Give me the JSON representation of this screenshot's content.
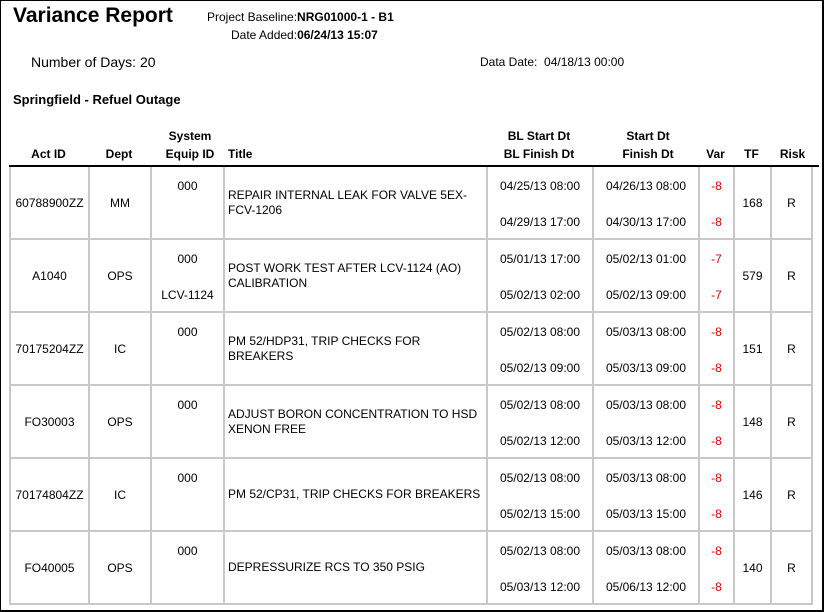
{
  "header": {
    "title": "Variance Report",
    "baseline_label": "Project Baseline:",
    "baseline_value": "NRG01000-1 - B1",
    "date_added_label": "Date Added:",
    "date_added_value": "06/24/13 15:07",
    "days_label": "Number of Days:",
    "days_value": "20",
    "data_date_label": "Data Date:",
    "data_date_value": "04/18/13 00:00",
    "section": "Springfield - Refuel Outage"
  },
  "columns": {
    "act_id": "Act ID",
    "dept": "Dept",
    "sys1": "System",
    "sys2": "Equip ID",
    "title": "Title",
    "bl1": "BL Start Dt",
    "bl2": "BL Finish Dt",
    "st1": "Start Dt",
    "st2": "Finish Dt",
    "var": "Var",
    "tf": "TF",
    "risk": "Risk"
  },
  "rows": [
    {
      "act_id": "60788900ZZ",
      "dept": "MM",
      "sys": "000",
      "equip": "",
      "title": "REPAIR INTERNAL LEAK FOR VALVE 5EX-FCV-1206",
      "bl_start": "04/25/13 08:00",
      "bl_finish": "04/29/13 17:00",
      "start": "04/26/13 08:00",
      "finish": "04/30/13 17:00",
      "var_start": "-8",
      "var_finish": "-8",
      "tf": "168",
      "risk": "R"
    },
    {
      "act_id": "A1040",
      "dept": "OPS",
      "sys": "000",
      "equip": "LCV-1124",
      "title": "POST WORK TEST AFTER LCV-1124 (AO) CALIBRATION",
      "bl_start": "05/01/13 17:00",
      "bl_finish": "05/02/13 02:00",
      "start": "05/02/13 01:00",
      "finish": "05/02/13 09:00",
      "var_start": "-7",
      "var_finish": "-7",
      "tf": "579",
      "risk": "R"
    },
    {
      "act_id": "70175204ZZ",
      "dept": "IC",
      "sys": "000",
      "equip": "",
      "title": "PM 52/HDP31, TRIP CHECKS FOR BREAKERS",
      "bl_start": "05/02/13 08:00",
      "bl_finish": "05/02/13 09:00",
      "start": "05/03/13 08:00",
      "finish": "05/03/13 09:00",
      "var_start": "-8",
      "var_finish": "-8",
      "tf": "151",
      "risk": "R"
    },
    {
      "act_id": "FO30003",
      "dept": "OPS",
      "sys": "000",
      "equip": "",
      "title": "ADJUST BORON CONCENTRATION TO HSD XENON FREE",
      "bl_start": "05/02/13 08:00",
      "bl_finish": "05/02/13 12:00",
      "start": "05/03/13 08:00",
      "finish": "05/03/13 12:00",
      "var_start": "-8",
      "var_finish": "-8",
      "tf": "148",
      "risk": "R"
    },
    {
      "act_id": "70174804ZZ",
      "dept": "IC",
      "sys": "000",
      "equip": "",
      "title": "PM 52/CP31, TRIP CHECKS FOR BREAKERS",
      "bl_start": "05/02/13 08:00",
      "bl_finish": "05/02/13 15:00",
      "start": "05/03/13 08:00",
      "finish": "05/03/13 15:00",
      "var_start": "-8",
      "var_finish": "-8",
      "tf": "146",
      "risk": "R"
    },
    {
      "act_id": "FO40005",
      "dept": "OPS",
      "sys": "000",
      "equip": "",
      "title": "DEPRESSURIZE RCS TO 350 PSIG",
      "bl_start": "05/02/13 08:00",
      "bl_finish": "05/03/13 12:00",
      "start": "05/03/13 08:00",
      "finish": "05/06/13 12:00",
      "var_start": "-8",
      "var_finish": "-8",
      "tf": "140",
      "risk": "R"
    }
  ],
  "colors": {
    "variance": "#e00000",
    "grid": "#c8c8c8"
  }
}
